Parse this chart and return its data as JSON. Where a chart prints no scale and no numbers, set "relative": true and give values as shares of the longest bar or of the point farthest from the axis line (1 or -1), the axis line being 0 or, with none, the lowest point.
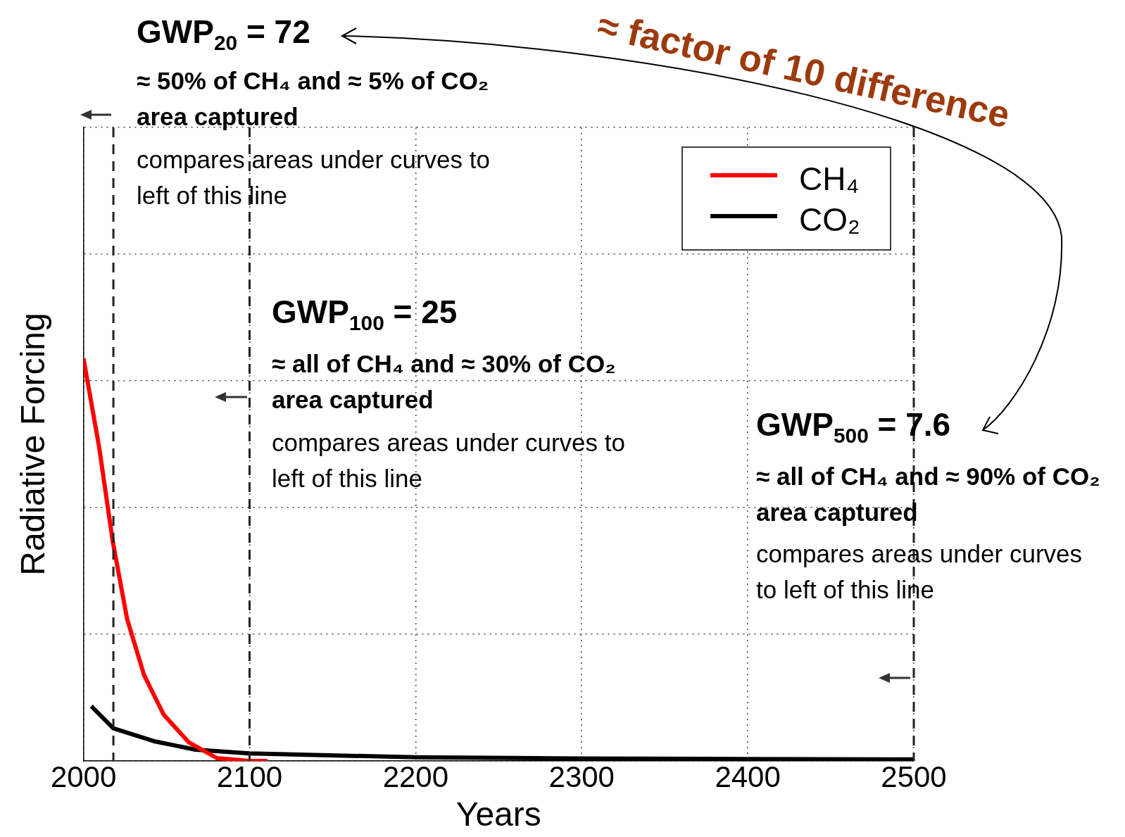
{
  "chart_data": {
    "type": "line",
    "relative": true,
    "xlabel": "Years",
    "ylabel": "Radiative Forcing",
    "xlim": [
      2000,
      2500
    ],
    "xticks": [
      2000,
      2100,
      2200,
      2300,
      2400,
      2500
    ],
    "grid": true,
    "legend": "top right",
    "marker": "none",
    "line_style": "solid",
    "series": [
      {
        "name": "CH₄",
        "color": "#ff0000",
        "x": [
          2000,
          2009.4,
          2017.6,
          2026.3,
          2036.5,
          2048.3,
          2063.5,
          2080.4,
          2100,
          2110.8
        ],
        "values": [
          1.0,
          0.78,
          0.546,
          0.352,
          0.213,
          0.115,
          0.046,
          0.007,
          0,
          0
        ]
      },
      {
        "name": "CO₂",
        "color": "#000000",
        "x": [
          2004.7,
          2018,
          2042.5,
          2067.6,
          2100,
          2200,
          2300,
          2400,
          2500
        ],
        "values": [
          0.136,
          0.081,
          0.049,
          0.028,
          0.019,
          0.009,
          0.006,
          0.005,
          0.004
        ]
      }
    ],
    "ref_lines": [
      {
        "axis": "x",
        "value": 2018,
        "color": "#222222",
        "line_style": "dashed"
      },
      {
        "axis": "x",
        "value": 2100,
        "color": "#222222",
        "line_style": "dashed"
      },
      {
        "axis": "x",
        "value": 2500,
        "color": "#222222",
        "line_style": "dashed"
      }
    ],
    "annotations": [
      "GWP$_{20}$ = 72",
      "≈ 50% of CH₄ and ≈ 5% of CO₂\narea captured",
      "compares areas under curves to\nleft of this line",
      "GWP$_{100}$ = 25",
      "≈ all of CH₄ and ≈ 30% of CO₂\narea captured",
      "compares areas under curves to\nleft of this line",
      "GWP$_{500}$ = 7.6",
      "≈ all of CH₄ and ≈ 90% of CO₂\narea captured",
      "compares areas under curves\nto left of this line",
      "≈ factor of 10 difference"
    ]
  }
}
